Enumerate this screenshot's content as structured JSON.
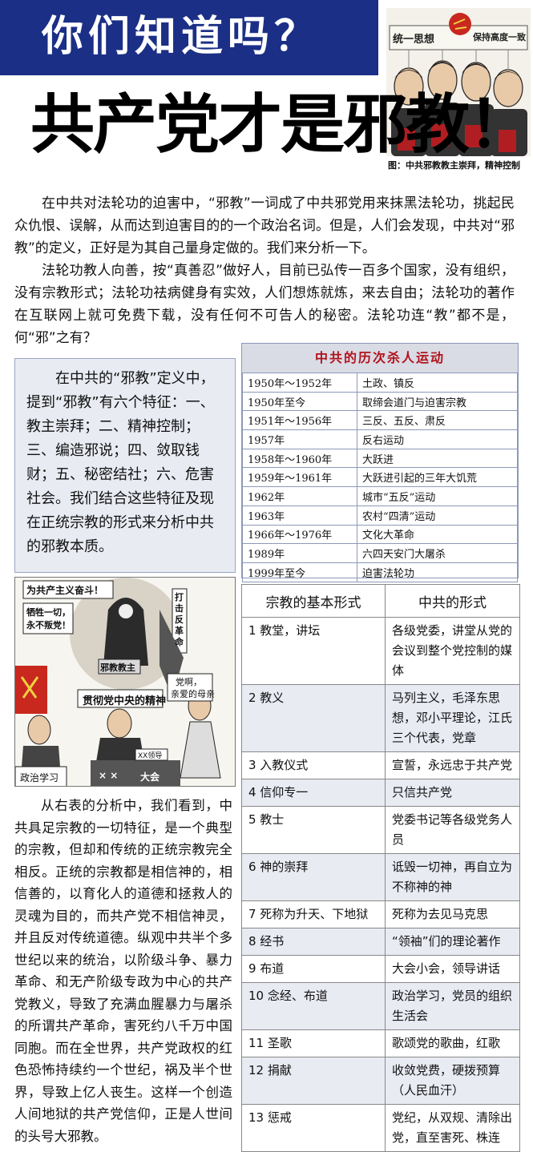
{
  "header": {
    "question": "你们知道吗？",
    "headline_main": "共产党才是邪教",
    "headline_mark": "！"
  },
  "top_cartoon": {
    "banner_left": "统一思想",
    "banner_right": "保持高度一致",
    "caption": "图：中共邪教教主崇拜，精神控制"
  },
  "intro": {
    "p1": "在中共对法轮功的迫害中，“邪教”一词成了中共邪党用来抹黑法轮功，挑起民众仇恨、误解，从而达到迫害目的的一个政治名词。但是，人们会发现，中共对“邪教”的定义，正好是为其自己量身定做的。我们来分析一下。",
    "p2": "法轮功教人向善，按“真善忍”做好人，目前已弘传一百多个国家，没有组织，没有宗教形式；法轮功祛病健身有实效，人们想炼就炼，来去自由；法轮功的著作在互联网上就可免费下载，没有任何不可告人的秘密。法轮功连“教”都不是，何“邪”之有？"
  },
  "definition_box": {
    "text": "在中共的“邪教”定义中，提到“邪教”有六个特征：一、教主崇拜；二、精神控制；三、编造邪说；四、敛取钱财；五、秘密结社；六、危害社会。我们结合这些特征及现在正统宗教的形式来分析中共的邪教本质。"
  },
  "kill_table": {
    "title": "中共的历次杀人运动",
    "rows": [
      {
        "year": "1950年～1952年",
        "event": "土政、镇反"
      },
      {
        "year": "1950年至今",
        "event": "取缔会道门与迫害宗教"
      },
      {
        "year": "1951年～1956年",
        "event": "三反、五反、肃反"
      },
      {
        "year": "1957年",
        "event": "反右运动"
      },
      {
        "year": "1958年～1960年",
        "event": "大跃进"
      },
      {
        "year": "1959年～1961年",
        "event": "大跃进引起的三年大饥荒"
      },
      {
        "year": "1962年",
        "event": "城市“五反”运动"
      },
      {
        "year": "1963年",
        "event": "农村“四清”运动"
      },
      {
        "year": "1966年～1976年",
        "event": "文化大革命"
      },
      {
        "year": "1989年",
        "event": "六四天安门大屠杀"
      },
      {
        "year": "1999年至今",
        "event": "迫害法轮功"
      }
    ]
  },
  "middle_cartoon": {
    "banner": "为共产主义奋斗！",
    "sign_left_1": "牺牲一切，",
    "sign_left_2": "永不叛党！",
    "vertical_sign": "打击反革命",
    "robe_label": "邪教教主",
    "speech_1": "党啊，",
    "speech_2": "亲爱的母亲",
    "slogan": "贯彻党中央的精神",
    "desk_label": "XX领导",
    "desk_front": "× ×",
    "meeting": "大会",
    "study_sign": "政治学习"
  },
  "analysis": {
    "text": "从右表的分析中，我们看到，中共具足宗教的一切特征，是一个典型的宗教，但却和传统的正统宗教完全相反。正统的宗教都是相信神的，相信善的，以育化人的道德和拯救人的灵魂为目的，而共产党不相信神灵，并且反对传统道德。纵观中共半个多世纪以来的统治，以阶级斗争、暴力革命、和无产阶级专政为中心的共产党教义，导致了充满血腥暴力与屠杀的所谓共产革命，害死约八千万中国同胞。而在全世界，共产党政权的红色恐怖持续约一个世纪，祸及半个世界，导致上亿人丧生。这样一个创造人间地狱的共产党信仰，正是人世间的头号大邪教。"
  },
  "compare_table": {
    "col1": "宗教的基本形式",
    "col2": "中共的形式",
    "rows": [
      {
        "religion": "1 教堂，讲坛",
        "ccp": "各级党委，讲堂从党的会议到整个党控制的媒体"
      },
      {
        "religion": "2 教义",
        "ccp": "马列主义，毛泽东思想，邓小平理论，江氏三个代表，党章"
      },
      {
        "religion": "3 入教仪式",
        "ccp": "宣誓，永远忠于共产党"
      },
      {
        "religion": "4 信仰专一",
        "ccp": "只信共产党"
      },
      {
        "religion": "5 教士",
        "ccp": "党委书记等各级党务人员"
      },
      {
        "religion": "6 神的崇拜",
        "ccp": "诋毁一切神，再自立为不称神的神"
      },
      {
        "religion": "7 死称为升天、下地狱",
        "ccp": "死称为去见马克思"
      },
      {
        "religion": "8 经书",
        "ccp": "“领袖”们的理论著作"
      },
      {
        "religion": "9 布道",
        "ccp": "大会小会，领导讲话"
      },
      {
        "religion": "10 念经、布道",
        "ccp": "政治学习，党员的组织生活会"
      },
      {
        "religion": "11 圣歌",
        "ccp": "歌颂党的歌曲，红歌"
      },
      {
        "religion": "12 捐献",
        "ccp": "收敛党费，硬拨预算（人民血汗）"
      },
      {
        "religion": "13 惩戒",
        "ccp": "党纪，从双规、清除出党，直至害死、株连"
      }
    ]
  }
}
